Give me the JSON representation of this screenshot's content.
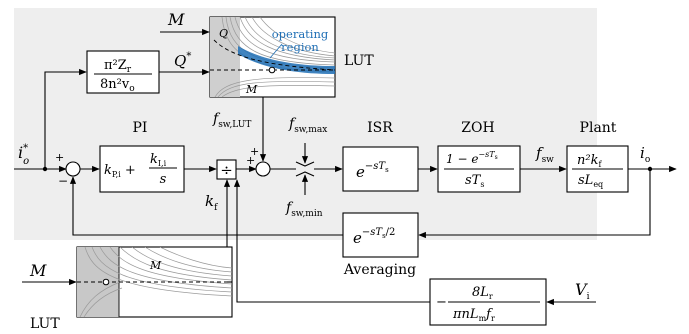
{
  "colors": {
    "background_region": "#eeeeee",
    "wire": "#000000",
    "lut_highlight": "#1f6fb5",
    "lut_curves": "#9a9a9a",
    "lut_shade": "#c8c8c8"
  },
  "inputs": {
    "M_top": "M",
    "M_bottom": "M",
    "V_i": "V",
    "V_i_sub": "i",
    "i_o_star": "i",
    "i_o_star_sub": "o",
    "i_o_star_sup": "*"
  },
  "blocks": {
    "gain_Q": {
      "num": "π²Z",
      "num_sub": "r",
      "den": "8n²v",
      "den_sub": "o"
    },
    "pi": {
      "title": "PI",
      "kp": "k",
      "kp_sub": "P,i",
      "ki": "k",
      "ki_sub": "I,i",
      "den": "s"
    },
    "divider": {
      "symbol": "÷"
    },
    "isr": {
      "title": "ISR",
      "expr": "e",
      "expr_sup": "−sT",
      "expr_sup_sub": "s"
    },
    "zoh": {
      "title": "ZOH",
      "num": "1 − e",
      "num_sup": "−sT",
      "num_sup_sub": "s",
      "den": "sT",
      "den_sub": "s"
    },
    "plant": {
      "title": "Plant",
      "num": "n²k",
      "num_sub": "f",
      "den": "sL",
      "den_sub": "eq"
    },
    "averaging": {
      "title": "Averaging",
      "expr": "e",
      "expr_sup": "−sT",
      "expr_sup_sub": "s",
      "expr_sup_tail": "/2"
    },
    "gain_kf": {
      "sign": "−",
      "num": "8L",
      "num_sub": "r",
      "den": "πnL",
      "den_sub1": "m",
      "den_tail": "f",
      "den_sub2": "r"
    },
    "lut_top": {
      "title": "LUT",
      "region_label_1": "operating",
      "region_label_2": "region",
      "q_label": "Q",
      "m_label": "M"
    },
    "lut_bottom": {
      "title": "LUT",
      "m_label": "M"
    }
  },
  "signals": {
    "Q_star": "Q",
    "Q_star_sup": "*",
    "f_sw_lut": "f",
    "f_sw_lut_sub": "sw,LUT",
    "f_sw_max": "f",
    "f_sw_max_sub": "sw,max",
    "f_sw_min": "f",
    "f_sw_min_sub": "sw,min",
    "k_f": "k",
    "k_f_sub": "f",
    "f_sw": "f",
    "f_sw_sub": "sw",
    "i_o": "i",
    "i_o_sub": "o"
  },
  "summers": {
    "s1_plus": "+",
    "s1_minus": "−",
    "s2_plus_top": "+",
    "s2_plus_left": "+"
  }
}
